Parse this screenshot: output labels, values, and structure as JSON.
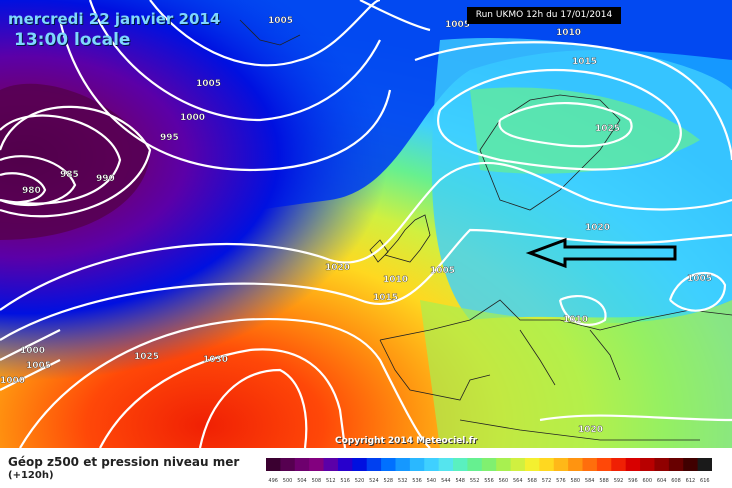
{
  "header": {
    "date": "mercredi 22 janvier 2014",
    "time": "13:00 locale",
    "run": "Run UKMO 12h du 17/01/2014"
  },
  "copyright": "Copyright 2014 Meteociel.fr",
  "legend": {
    "title": "Géop z500 et pression niveau mer",
    "subtitle": "(+120h)",
    "scale_values": [
      "496",
      "500",
      "504",
      "508",
      "512",
      "516",
      "520",
      "524",
      "528",
      "532",
      "536",
      "540",
      "544",
      "548",
      "552",
      "556",
      "560",
      "564",
      "568",
      "572",
      "576",
      "580",
      "584",
      "588",
      "592",
      "596",
      "600",
      "604",
      "608",
      "612",
      "616"
    ],
    "colors": [
      "#3a0030",
      "#560050",
      "#6e006e",
      "#83007f",
      "#5b00a8",
      "#2800cc",
      "#0010e0",
      "#0040f0",
      "#0070ff",
      "#1598ff",
      "#2ab8ff",
      "#3fd0ff",
      "#55e4ee",
      "#5af0c0",
      "#66f090",
      "#80f070",
      "#a8f050",
      "#d0f040",
      "#f4f030",
      "#ffd820",
      "#ffb818",
      "#ff9410",
      "#ff6e0c",
      "#ff4808",
      "#f02004",
      "#d80000",
      "#b80000",
      "#900000",
      "#680000",
      "#400000",
      "#1a1a1a"
    ]
  },
  "isobars": {
    "labels": [
      "1005",
      "1005",
      "1010",
      "1015",
      "1005",
      "1000",
      "995",
      "990",
      "985",
      "980",
      "1025",
      "1020",
      "1020",
      "1010",
      "1005",
      "1015",
      "1005",
      "1010",
      "1000",
      "1005",
      "1025",
      "1030",
      "1020",
      "1000"
    ]
  },
  "annotation": {
    "icon": "arrow-left-icon"
  }
}
